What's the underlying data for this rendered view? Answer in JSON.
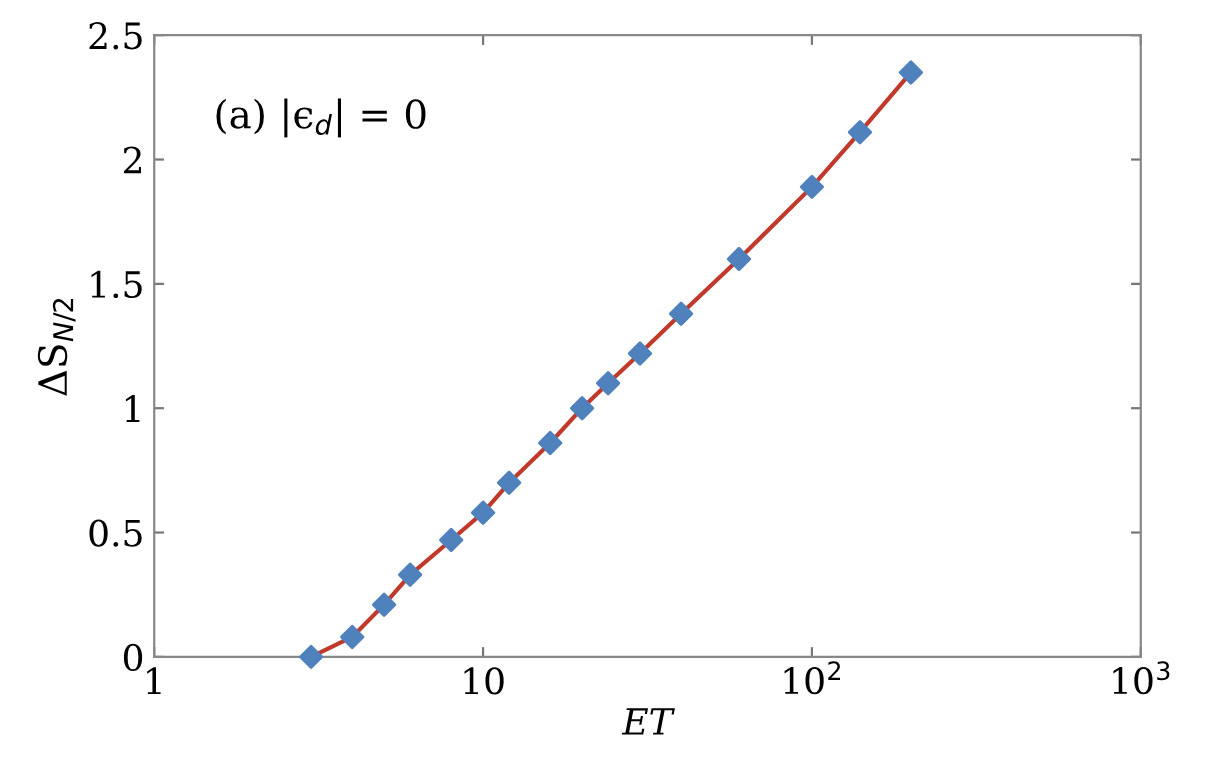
{
  "chart_data": {
    "type": "line",
    "xlabel": "ET",
    "ylabel": "ΔS$_{N/2}$",
    "annotations": [
      "(a) |ϵ$_{d}$| = 0"
    ],
    "x": [
      3,
      4,
      5,
      6,
      8,
      10,
      12,
      16,
      20,
      24,
      30,
      40,
      60,
      100,
      140,
      200
    ],
    "series": [
      {
        "color": "#c0392b",
        "marker": "none",
        "values": [
          0,
          0.08,
          0.21,
          0.33,
          0.47,
          0.58,
          0.7,
          0.86,
          1.0,
          1.1,
          1.22,
          1.38,
          1.6,
          1.89,
          2.11,
          2.35
        ]
      },
      {
        "type": "scatter",
        "color": "#4f81bd",
        "marker": "diamond",
        "values": [
          0,
          0.08,
          0.21,
          0.33,
          0.47,
          0.58,
          0.7,
          0.86,
          1.0,
          1.1,
          1.22,
          1.38,
          1.6,
          1.89,
          2.11,
          2.35
        ]
      }
    ],
    "log": "x",
    "xlim": [
      1,
      1000
    ],
    "xticks": [
      1,
      10,
      {
        "value": 100,
        "label": "10$^{2}$"
      },
      {
        "value": 1000,
        "label": "10$^{3}$"
      }
    ],
    "ylim": [
      0,
      2.5
    ],
    "yticks": [
      0,
      0.5,
      1,
      1.5,
      2,
      2.5
    ],
    "grid": false,
    "legend": false
  }
}
